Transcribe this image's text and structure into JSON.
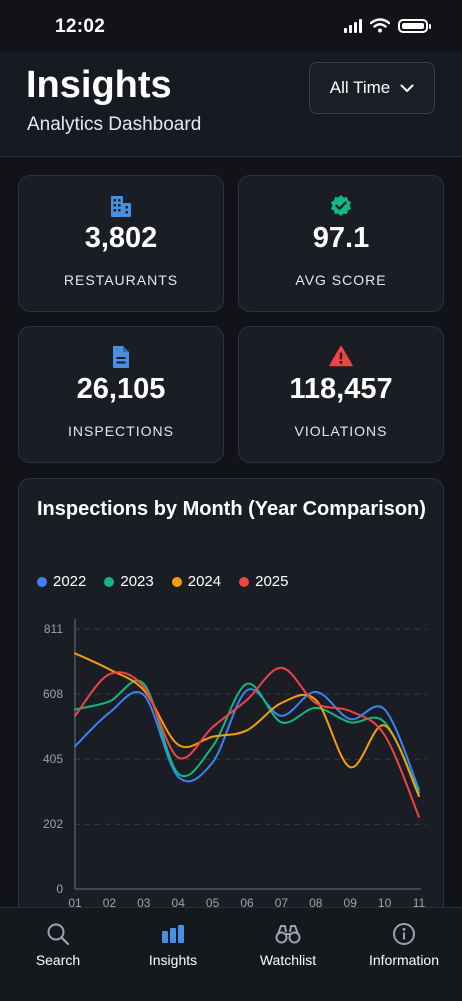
{
  "status": {
    "time": "12:02"
  },
  "header": {
    "title": "Insights",
    "subtitle": "Analytics Dashboard",
    "filter_label": "All Time"
  },
  "stats": [
    {
      "value": "3,802",
      "label": "RESTAURANTS",
      "icon": "building-icon",
      "color": "#4a90e2"
    },
    {
      "value": "97.1",
      "label": "AVG SCORE",
      "icon": "verified-badge-icon",
      "color": "#10b981"
    },
    {
      "value": "26,105",
      "label": "INSPECTIONS",
      "icon": "document-icon",
      "color": "#4a90e2"
    },
    {
      "value": "118,457",
      "label": "VIOLATIONS",
      "icon": "warning-icon",
      "color": "#ef4444"
    }
  ],
  "chart": {
    "title": "Inspections by Month (Year Comparison)"
  },
  "chart_data": {
    "type": "line",
    "title": "Inspections by Month (Year Comparison)",
    "x": [
      "01",
      "02",
      "03",
      "04",
      "05",
      "06",
      "07",
      "08",
      "09",
      "10",
      "11"
    ],
    "yticks": [
      0,
      202,
      405,
      608,
      811
    ],
    "ylim": [
      0,
      811
    ],
    "grid": true,
    "legend": "top-left",
    "series": [
      {
        "name": "2022",
        "color": "#3b82f6",
        "values": [
          445,
          550,
          605,
          350,
          395,
          620,
          540,
          615,
          530,
          560,
          310
        ]
      },
      {
        "name": "2023",
        "color": "#10b981",
        "values": [
          560,
          585,
          640,
          360,
          445,
          640,
          520,
          565,
          520,
          520,
          300
        ]
      },
      {
        "name": "2024",
        "color": "#f59e0b",
        "values": [
          735,
          685,
          620,
          450,
          475,
          495,
          580,
          590,
          380,
          510,
          290
        ]
      },
      {
        "name": "2025",
        "color": "#ef4444",
        "values": [
          540,
          670,
          630,
          410,
          505,
          590,
          690,
          580,
          555,
          480,
          225
        ]
      }
    ]
  },
  "tabs": [
    {
      "label": "Search",
      "icon": "search-icon",
      "active": false
    },
    {
      "label": "Insights",
      "icon": "bar-chart-icon",
      "active": true
    },
    {
      "label": "Watchlist",
      "icon": "binoculars-icon",
      "active": false
    },
    {
      "label": "Information",
      "icon": "info-icon",
      "active": false
    }
  ]
}
